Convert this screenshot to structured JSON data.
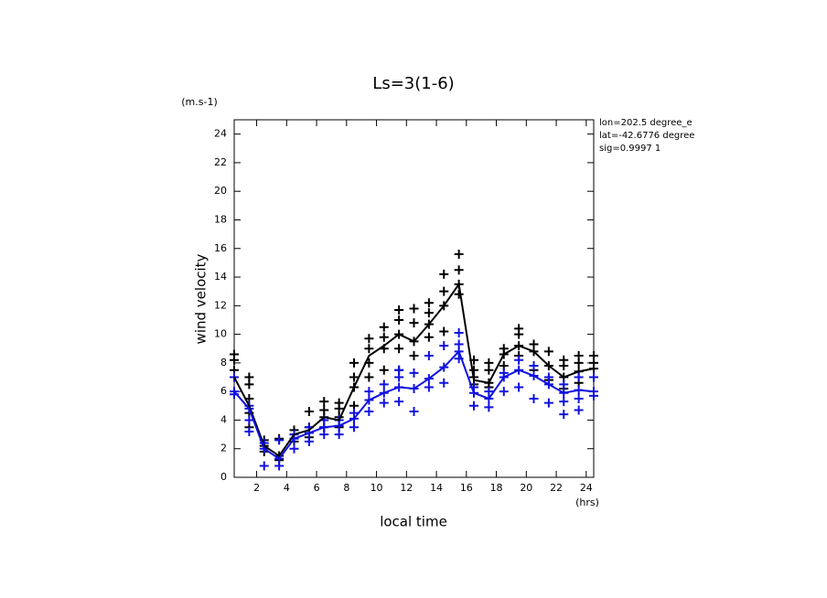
{
  "chart_data": {
    "type": "line",
    "title": "Ls=3(1-6)",
    "y_unit": "(m.s-1)",
    "ylabel": "wind velocity",
    "xlabel": "local time",
    "x_unit": "(hrs)",
    "annotations": [
      "lon=202.5 degree_e",
      "lat=-42.6776 degree",
      "sig=0.9997 1"
    ],
    "x": [
      0.5,
      1.5,
      2.5,
      3.5,
      4.5,
      5.5,
      6.5,
      7.5,
      8.5,
      9.5,
      10.5,
      11.5,
      12.5,
      13.5,
      14.5,
      15.5,
      16.5,
      17.5,
      18.5,
      19.5,
      20.5,
      21.5,
      22.5,
      23.5,
      24.5
    ],
    "xlim": [
      0.5,
      24.5
    ],
    "xticks": [
      2,
      4,
      6,
      8,
      10,
      12,
      14,
      16,
      18,
      20,
      22,
      24
    ],
    "ylim": [
      0,
      25
    ],
    "yticks": [
      0,
      2,
      4,
      6,
      8,
      10,
      12,
      14,
      16,
      18,
      20,
      22,
      24
    ],
    "series": [
      {
        "color": "#000000",
        "values": [
          7.0,
          5.0,
          2.2,
          1.5,
          3.0,
          3.3,
          4.2,
          4.0,
          6.3,
          8.5,
          9.2,
          10.0,
          9.5,
          10.7,
          12.0,
          13.5,
          6.8,
          6.6,
          8.6,
          9.2,
          8.8,
          7.8,
          7.0,
          7.4,
          7.6
        ]
      },
      {
        "color": "#1010e0",
        "values": [
          6.0,
          4.8,
          2.0,
          1.3,
          2.7,
          3.1,
          3.5,
          3.6,
          4.1,
          5.4,
          5.9,
          6.3,
          6.2,
          6.9,
          7.7,
          8.8,
          5.9,
          5.5,
          7.0,
          7.5,
          7.1,
          6.5,
          5.9,
          6.1,
          6.0
        ]
      }
    ],
    "scatter_series": [
      {
        "color": "#000000",
        "values": [
          [
            7.0,
            7.5,
            8.2,
            8.6
          ],
          [
            3.5,
            4.5,
            5.5,
            6.5,
            7.0
          ],
          [
            1.8,
            2.2,
            2.6
          ],
          [
            1.2,
            1.5,
            2.7
          ],
          [
            2.5,
            3.0,
            3.3
          ],
          [
            2.8,
            3.5,
            4.6
          ],
          [
            3.5,
            4.2,
            4.7,
            5.3
          ],
          [
            3.5,
            4.2,
            4.8,
            5.2
          ],
          [
            5.0,
            6.3,
            7.0,
            8.0
          ],
          [
            7.0,
            8.0,
            9.0,
            9.7
          ],
          [
            7.5,
            9.0,
            9.8,
            10.5
          ],
          [
            7.5,
            9.0,
            10.0,
            11.0,
            11.7
          ],
          [
            8.5,
            9.5,
            10.8,
            11.8
          ],
          [
            9.8,
            10.7,
            11.5,
            12.2
          ],
          [
            10.2,
            12.0,
            13.0,
            14.2
          ],
          [
            12.8,
            13.5,
            14.5,
            15.6
          ],
          [
            6.5,
            7.0,
            7.5,
            8.2
          ],
          [
            6.3,
            6.6,
            7.5,
            8.0
          ],
          [
            7.8,
            8.6,
            9.0
          ],
          [
            8.5,
            9.2,
            10.0,
            10.4
          ],
          [
            7.5,
            8.8,
            9.3
          ],
          [
            6.8,
            7.8,
            8.8
          ],
          [
            6.2,
            7.0,
            7.8,
            8.2
          ],
          [
            6.6,
            7.4,
            8.0,
            8.5
          ],
          [
            7.0,
            7.6,
            8.0,
            8.5
          ]
        ]
      },
      {
        "color": "#1010e0",
        "values": [
          [
            5.8,
            6.0,
            7.0
          ],
          [
            3.2,
            4.0,
            4.8,
            5.0
          ],
          [
            0.8,
            2.0,
            2.4
          ],
          [
            0.8,
            1.3,
            2.6
          ],
          [
            2.0,
            2.7,
            3.0
          ],
          [
            2.5,
            3.1,
            3.5
          ],
          [
            3.0,
            3.5,
            4.0
          ],
          [
            3.0,
            3.6,
            4.0
          ],
          [
            3.5,
            4.1,
            4.5
          ],
          [
            4.6,
            5.4,
            6.0
          ],
          [
            5.2,
            5.9,
            6.5
          ],
          [
            5.3,
            6.3,
            7.0,
            7.5
          ],
          [
            4.6,
            6.2,
            7.3
          ],
          [
            6.3,
            6.9,
            8.5
          ],
          [
            6.6,
            7.7,
            9.2
          ],
          [
            8.3,
            8.8,
            9.3,
            10.1
          ],
          [
            5.0,
            5.9,
            6.3
          ],
          [
            4.9,
            5.5,
            6.0
          ],
          [
            6.0,
            7.0,
            7.3
          ],
          [
            6.3,
            7.5,
            8.2
          ],
          [
            5.5,
            7.1,
            7.8
          ],
          [
            5.2,
            6.5,
            7.0
          ],
          [
            4.4,
            5.3,
            5.9,
            6.5
          ],
          [
            4.7,
            5.5,
            6.1,
            7.0
          ],
          [
            5.7,
            6.0,
            7.0
          ]
        ]
      }
    ]
  }
}
